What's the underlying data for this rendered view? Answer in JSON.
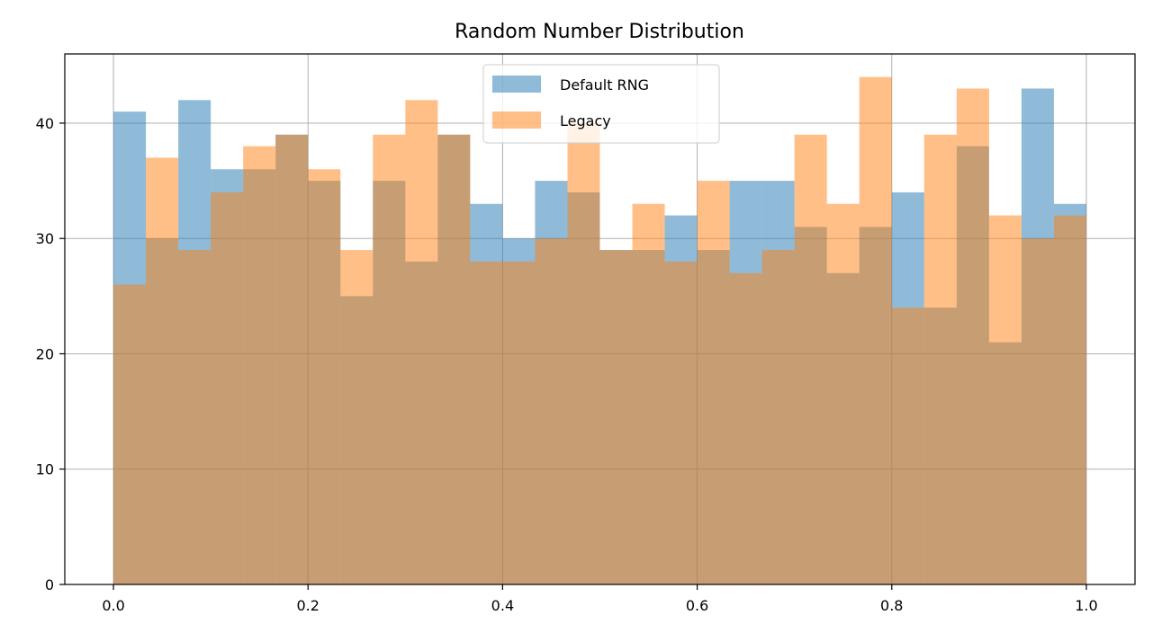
{
  "chart_data": {
    "type": "bar",
    "title": "Random Number Distribution",
    "xlabel": "",
    "ylabel": "",
    "bin_count": 30,
    "bin_range": [
      0.0,
      1.0
    ],
    "xlim": [
      -0.05,
      1.05
    ],
    "ylim": [
      0,
      46
    ],
    "x_ticks": [
      "0.0",
      "0.2",
      "0.4",
      "0.6",
      "0.8",
      "1.0"
    ],
    "y_ticks": [
      "0",
      "10",
      "20",
      "30",
      "40"
    ],
    "grid": true,
    "legend_position": "top-center",
    "series": [
      {
        "name": "Default RNG",
        "color": "#1f77b4",
        "alpha": 0.5,
        "values": [
          41,
          30,
          42,
          36,
          36,
          39,
          35,
          25,
          35,
          28,
          39,
          33,
          30,
          35,
          34,
          29,
          29,
          32,
          29,
          35,
          35,
          31,
          27,
          31,
          34,
          24,
          38,
          21,
          43,
          33
        ]
      },
      {
        "name": "Legacy",
        "color": "#ff7f0e",
        "alpha": 0.5,
        "values": [
          26,
          37,
          29,
          34,
          38,
          39,
          36,
          29,
          39,
          42,
          39,
          28,
          28,
          30,
          40,
          29,
          33,
          28,
          35,
          27,
          29,
          39,
          33,
          44,
          24,
          39,
          43,
          32,
          30,
          32
        ]
      }
    ]
  }
}
